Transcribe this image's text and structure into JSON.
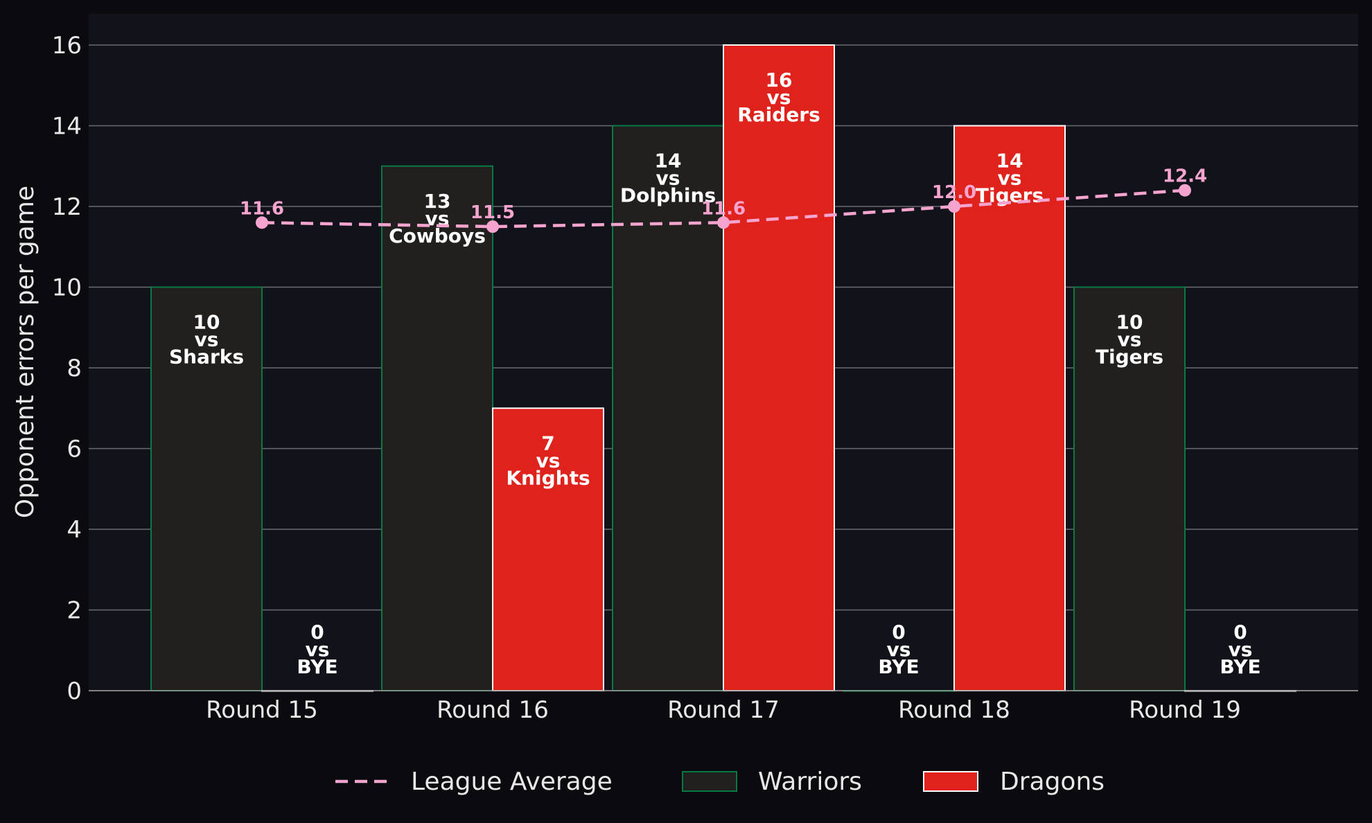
{
  "chart_data": {
    "type": "bar",
    "categories": [
      "Round 15",
      "Round 16",
      "Round 17",
      "Round 18",
      "Round 19"
    ],
    "ylabel": "Opponent errors per game",
    "xlabel": "",
    "ylim": [
      0,
      16.8
    ],
    "yticks": [
      0,
      2,
      4,
      6,
      8,
      10,
      12,
      14,
      16
    ],
    "grid": "horizontal",
    "legend_position": "bottom-center",
    "series": [
      {
        "name": "Warriors",
        "kind": "bar",
        "color": "#221f1f",
        "edge_color": "#0a7a45",
        "values": [
          10,
          13,
          14,
          0,
          10
        ],
        "opponents": [
          "Sharks",
          "Cowboys",
          "Dolphins",
          "BYE",
          "Tigers"
        ]
      },
      {
        "name": "Dragons",
        "kind": "bar",
        "color": "#e0221c",
        "edge_color": "#ffffff",
        "values": [
          0,
          7,
          16,
          14,
          0
        ],
        "opponents": [
          "BYE",
          "Knights",
          "Raiders",
          "Tigers",
          "BYE"
        ]
      },
      {
        "name": "League Average",
        "kind": "line",
        "style": "dashed",
        "color": "#f5a3cf",
        "values": [
          11.6,
          11.5,
          11.6,
          12.0,
          12.4
        ],
        "labels": [
          "11.6",
          "11.5",
          "11.6",
          "12.0",
          "12.4"
        ]
      }
    ],
    "vs_word": "vs"
  },
  "colors": {
    "background": "#0b0b0f",
    "plot_background": "#12121a",
    "grid": "#6a6a70",
    "text": "#e8e8e8"
  }
}
